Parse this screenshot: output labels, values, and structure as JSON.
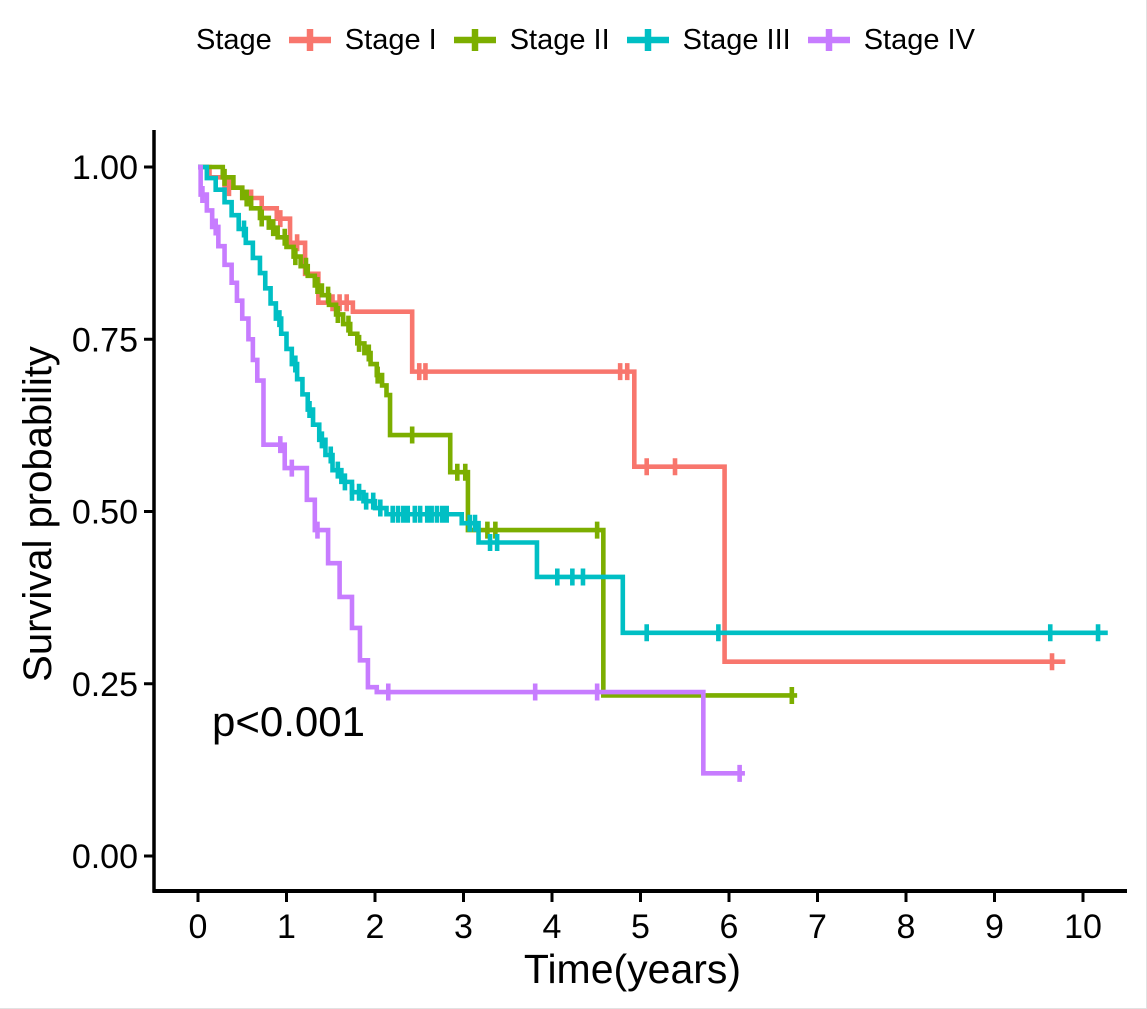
{
  "figure": {
    "legend": {
      "title": "Stage",
      "items": [
        {
          "label": "Stage I",
          "color": "#F8766D"
        },
        {
          "label": "Stage II",
          "color": "#7CAE00"
        },
        {
          "label": "Stage III",
          "color": "#00BFC4"
        },
        {
          "label": "Stage IV",
          "color": "#C77CFF"
        }
      ]
    },
    "annotation": {
      "p_value": "p<0.001"
    }
  },
  "chart_data": {
    "type": "line",
    "subtype": "kaplan-meier-step",
    "title": "",
    "xlabel": "Time(years)",
    "ylabel": "Survival probability",
    "grid": false,
    "legend_position": "top",
    "xlim": [
      -0.5,
      10.5
    ],
    "ylim": [
      -0.05,
      1.05
    ],
    "x_ticks": {
      "labels": [
        "0",
        "1",
        "2",
        "3",
        "4",
        "5",
        "6",
        "7",
        "8",
        "9",
        "10"
      ],
      "values": [
        0,
        1,
        2,
        3,
        4,
        5,
        6,
        7,
        8,
        9,
        10
      ]
    },
    "y_ticks": {
      "labels": [
        "0.00",
        "0.25",
        "0.50",
        "0.75",
        "1.00"
      ],
      "values": [
        0,
        0.25,
        0.5,
        0.75,
        1
      ]
    },
    "axis_color": "#000000",
    "series": [
      {
        "name": "Stage I",
        "color": "#F8766D",
        "start": 1.0,
        "steps": [
          [
            0.13,
            0.985
          ],
          [
            0.3,
            0.97
          ],
          [
            0.5,
            0.955
          ],
          [
            0.72,
            0.94
          ],
          [
            0.89,
            0.925
          ],
          [
            1.04,
            0.89
          ],
          [
            1.21,
            0.845
          ],
          [
            1.36,
            0.803
          ],
          [
            1.75,
            0.79
          ],
          [
            2.42,
            0.703
          ],
          [
            4.93,
            0.565
          ],
          [
            5.95,
            0.282
          ]
        ],
        "end": 9.8,
        "censors": [
          0.35,
          0.6,
          0.93,
          1.12,
          1.52,
          1.6,
          1.68,
          2.5,
          2.57,
          4.77,
          4.85,
          5.07,
          5.39,
          9.65
        ]
      },
      {
        "name": "Stage II",
        "color": "#7CAE00",
        "start": 1.0,
        "steps": [
          [
            0.28,
            0.985
          ],
          [
            0.4,
            0.97
          ],
          [
            0.5,
            0.955
          ],
          [
            0.6,
            0.94
          ],
          [
            0.7,
            0.926
          ],
          [
            0.8,
            0.912
          ],
          [
            0.9,
            0.898
          ],
          [
            1.0,
            0.884
          ],
          [
            1.08,
            0.87
          ],
          [
            1.16,
            0.856
          ],
          [
            1.24,
            0.842
          ],
          [
            1.32,
            0.828
          ],
          [
            1.4,
            0.814
          ],
          [
            1.48,
            0.8
          ],
          [
            1.56,
            0.786
          ],
          [
            1.64,
            0.772
          ],
          [
            1.72,
            0.758
          ],
          [
            1.8,
            0.744
          ],
          [
            1.88,
            0.73
          ],
          [
            1.95,
            0.714
          ],
          [
            2.02,
            0.698
          ],
          [
            2.08,
            0.683
          ],
          [
            2.13,
            0.669
          ],
          [
            2.17,
            0.611
          ],
          [
            2.85,
            0.557
          ],
          [
            3.05,
            0.473
          ],
          [
            4.58,
            0.233
          ]
        ],
        "end": 6.77,
        "censors": [
          0.3,
          0.55,
          0.72,
          0.85,
          0.98,
          1.1,
          1.22,
          1.35,
          1.47,
          1.58,
          1.7,
          1.82,
          1.93,
          2.03,
          2.42,
          2.93,
          3.02,
          3.27,
          3.36,
          4.51,
          6.71
        ]
      },
      {
        "name": "Stage III",
        "color": "#00BFC4",
        "start": 1.0,
        "steps": [
          [
            0.1,
            0.984
          ],
          [
            0.2,
            0.967
          ],
          [
            0.3,
            0.949
          ],
          [
            0.38,
            0.93
          ],
          [
            0.46,
            0.91
          ],
          [
            0.54,
            0.89
          ],
          [
            0.62,
            0.868
          ],
          [
            0.7,
            0.846
          ],
          [
            0.76,
            0.824
          ],
          [
            0.82,
            0.802
          ],
          [
            0.88,
            0.78
          ],
          [
            0.94,
            0.758
          ],
          [
            1.0,
            0.736
          ],
          [
            1.06,
            0.714
          ],
          [
            1.12,
            0.692
          ],
          [
            1.18,
            0.67
          ],
          [
            1.24,
            0.648
          ],
          [
            1.3,
            0.626
          ],
          [
            1.37,
            0.604
          ],
          [
            1.44,
            0.582
          ],
          [
            1.52,
            0.56
          ],
          [
            1.62,
            0.543
          ],
          [
            1.74,
            0.528
          ],
          [
            1.87,
            0.515
          ],
          [
            2.0,
            0.505
          ],
          [
            2.13,
            0.496
          ],
          [
            2.98,
            0.483
          ],
          [
            3.17,
            0.455
          ],
          [
            3.83,
            0.405
          ],
          [
            4.8,
            0.324
          ]
        ],
        "end": 10.28,
        "censors": [
          0.52,
          0.92,
          1.1,
          1.26,
          1.4,
          1.5,
          1.58,
          1.66,
          1.74,
          1.82,
          1.9,
          1.98,
          2.06,
          2.2,
          2.26,
          2.32,
          2.37,
          2.45,
          2.51,
          2.59,
          2.64,
          2.7,
          2.76,
          2.81,
          3.07,
          3.13,
          3.3,
          3.38,
          4.06,
          4.23,
          4.35,
          5.07,
          5.88,
          9.63,
          10.17
        ]
      },
      {
        "name": "Stage IV",
        "color": "#C77CFF",
        "start": 1.0,
        "steps": [
          [
            0.03,
            0.96
          ],
          [
            0.1,
            0.937
          ],
          [
            0.16,
            0.913
          ],
          [
            0.23,
            0.885
          ],
          [
            0.3,
            0.858
          ],
          [
            0.38,
            0.832
          ],
          [
            0.44,
            0.806
          ],
          [
            0.5,
            0.78
          ],
          [
            0.57,
            0.75
          ],
          [
            0.62,
            0.72
          ],
          [
            0.67,
            0.69
          ],
          [
            0.74,
            0.597
          ],
          [
            0.98,
            0.563
          ],
          [
            1.23,
            0.517
          ],
          [
            1.32,
            0.473
          ],
          [
            1.47,
            0.425
          ],
          [
            1.6,
            0.376
          ],
          [
            1.74,
            0.331
          ],
          [
            1.83,
            0.284
          ],
          [
            1.92,
            0.245
          ],
          [
            2.02,
            0.238
          ],
          [
            5.71,
            0.12
          ]
        ],
        "end": 6.18,
        "censors": [
          0.05,
          0.2,
          0.93,
          1.06,
          1.35,
          2.15,
          3.81,
          4.51,
          6.12
        ]
      }
    ]
  }
}
